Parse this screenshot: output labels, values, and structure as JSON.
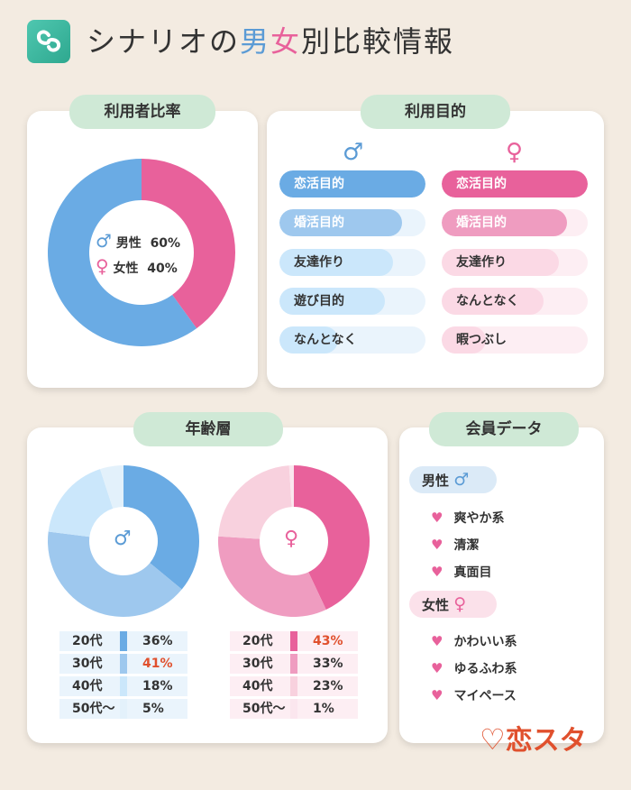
{
  "header": {
    "title_pre": "シナリオの",
    "title_male": "男",
    "title_female": "女",
    "title_post": "別比較情報"
  },
  "icons": {
    "male": "♂",
    "female": "♀",
    "heart": "♥"
  },
  "colors": {
    "male": "#5b9bd5",
    "female": "#e8619b",
    "pill": "#cfe9d6",
    "background": "#f3ebe1"
  },
  "ratio": {
    "title": "利用者比率",
    "male_label": "男性",
    "male_value": "60%",
    "female_label": "女性",
    "female_value": "40%"
  },
  "purpose": {
    "title": "利用目的",
    "male": [
      {
        "label": "恋活目的",
        "level": 1.0
      },
      {
        "label": "婚活目的",
        "level": 0.84
      },
      {
        "label": "友達作り",
        "level": 0.78
      },
      {
        "label": "遊び目的",
        "level": 0.72
      },
      {
        "label": "なんとなく",
        "level": 0.4
      }
    ],
    "female": [
      {
        "label": "恋活目的",
        "level": 1.0
      },
      {
        "label": "婚活目的",
        "level": 0.86
      },
      {
        "label": "友達作り",
        "level": 0.8
      },
      {
        "label": "なんとなく",
        "level": 0.7
      },
      {
        "label": "暇つぶし",
        "level": 0.3
      }
    ]
  },
  "age": {
    "title": "年齢層",
    "male_rows": [
      {
        "age": "20代",
        "pct": "36%",
        "highlight": false
      },
      {
        "age": "30代",
        "pct": "41%",
        "highlight": true
      },
      {
        "age": "40代",
        "pct": "18%",
        "highlight": false
      },
      {
        "age": "50代～",
        "pct": "5%",
        "highlight": false
      }
    ],
    "female_rows": [
      {
        "age": "20代",
        "pct": "43%",
        "highlight": true
      },
      {
        "age": "30代",
        "pct": "33%",
        "highlight": false
      },
      {
        "age": "40代",
        "pct": "23%",
        "highlight": false
      },
      {
        "age": "50代～",
        "pct": "1%",
        "highlight": false
      }
    ]
  },
  "members": {
    "title": "会員データ",
    "male_label": "男性",
    "male_items": [
      "爽やか系",
      "清潔",
      "真面目"
    ],
    "female_label": "女性",
    "female_items": [
      "かわいい系",
      "ゆるふわ系",
      "マイペース"
    ]
  },
  "brand": {
    "name": "恋スタ"
  },
  "chart_data": [
    {
      "type": "pie",
      "title": "利用者比率",
      "categories": [
        "男性",
        "女性"
      ],
      "values": [
        60,
        40
      ],
      "colors": [
        "#6aabe4",
        "#e8619b"
      ]
    },
    {
      "type": "bar",
      "title": "利用目的",
      "series": [
        {
          "name": "男性",
          "categories": [
            "恋活目的",
            "婚活目的",
            "友達作り",
            "遊び目的",
            "なんとなく"
          ],
          "values": [
            1.0,
            0.84,
            0.78,
            0.72,
            0.4
          ]
        },
        {
          "name": "女性",
          "categories": [
            "恋活目的",
            "婚活目的",
            "友達作り",
            "なんとなく",
            "暇つぶし"
          ],
          "values": [
            1.0,
            0.86,
            0.8,
            0.7,
            0.3
          ]
        }
      ]
    },
    {
      "type": "pie",
      "title": "年齢層",
      "series": [
        {
          "name": "男性",
          "categories": [
            "20代",
            "30代",
            "40代",
            "50代～"
          ],
          "values": [
            36,
            41,
            18,
            5
          ],
          "colors": [
            "#6aabe4",
            "#9ec8ee",
            "#cbe7fb",
            "#e3f1fb"
          ]
        },
        {
          "name": "女性",
          "categories": [
            "20代",
            "30代",
            "40代",
            "50代～"
          ],
          "values": [
            43,
            33,
            23,
            1
          ],
          "colors": [
            "#e8619b",
            "#ef9cc0",
            "#f8d1de",
            "#fbe6ee"
          ]
        }
      ]
    }
  ]
}
